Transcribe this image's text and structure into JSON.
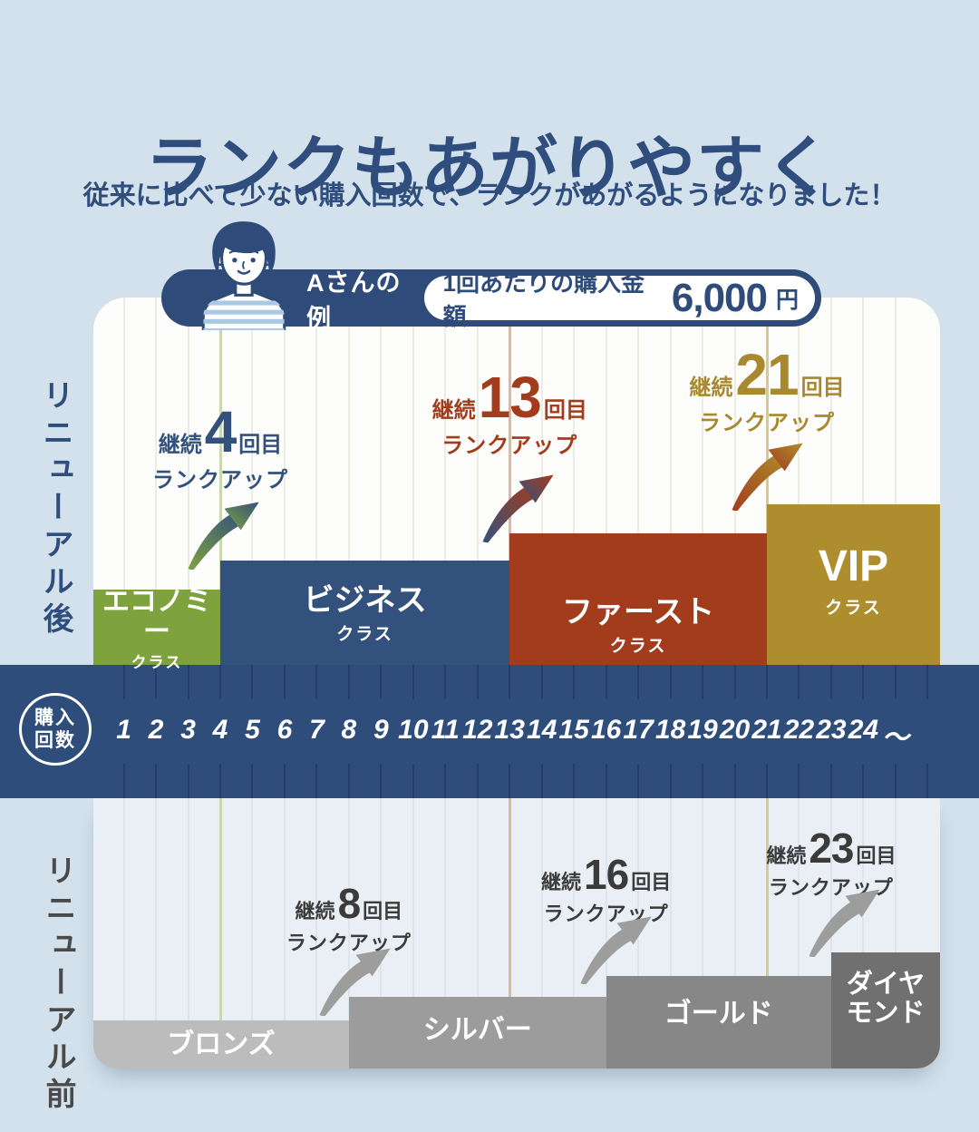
{
  "header": {
    "title": "ランクもあがりやすく",
    "subtitle": "従来に比べて少ない購入回数で、ランクがあがるようになりました！"
  },
  "example": {
    "label": "Aさんの例",
    "purchase_label": "1回あたりの購入金額",
    "amount": "6,000",
    "unit": "円"
  },
  "axis": {
    "circle_line1": "購入",
    "circle_line2": "回数",
    "counts": [
      "1",
      "2",
      "3",
      "4",
      "5",
      "6",
      "7",
      "8",
      "9",
      "10",
      "11",
      "12",
      "13",
      "14",
      "15",
      "16",
      "17",
      "18",
      "19",
      "20",
      "21",
      "22",
      "23",
      "24",
      "～"
    ]
  },
  "after": {
    "side_label": "リニューアル後",
    "ranks": [
      {
        "name": "エコノミー",
        "suffix": "クラス",
        "color": "#7EA33E",
        "from_count": 1
      },
      {
        "name": "ビジネス",
        "suffix": "クラス",
        "color": "#33517D",
        "from_count": 4
      },
      {
        "name": "ファースト",
        "suffix": "クラス",
        "color": "#A23C1D",
        "from_count": 13
      },
      {
        "name": "VIP",
        "suffix": "クラス",
        "color": "#AD8D2D",
        "from_count": 21
      }
    ],
    "annotations": [
      {
        "prefix": "継続",
        "count": "4",
        "unit": "回目",
        "line2": "ランクアップ",
        "color": "#33517D",
        "at_count": 4
      },
      {
        "prefix": "継続",
        "count": "13",
        "unit": "回目",
        "line2": "ランクアップ",
        "color": "#A23C1D",
        "at_count": 13
      },
      {
        "prefix": "継続",
        "count": "21",
        "unit": "回目",
        "line2": "ランクアップ",
        "color": "#A8892F",
        "at_count": 21
      }
    ],
    "thresholds": [
      {
        "count": 4,
        "line_color": "#C9D8AE"
      },
      {
        "count": 13,
        "line_color": "#E2B79D"
      },
      {
        "count": 21,
        "line_color": "#D9C88F"
      }
    ]
  },
  "before": {
    "side_label": "リニューアル前",
    "ranks": [
      {
        "name": "ブロンズ",
        "color": "#BCBCBC",
        "from_count": 1
      },
      {
        "name": "シルバー",
        "color": "#9C9C9C",
        "from_count": 8
      },
      {
        "name": "ゴールド",
        "color": "#878787",
        "from_count": 16
      },
      {
        "name": "ダイヤ\nモンド",
        "color": "#707070",
        "from_count": 23
      }
    ],
    "annotations": [
      {
        "prefix": "継続",
        "count": "8",
        "unit": "回目",
        "line2": "ランクアップ",
        "color": "#3B3B3B",
        "at_count": 8
      },
      {
        "prefix": "継続",
        "count": "16",
        "unit": "回目",
        "line2": "ランクアップ",
        "color": "#3B3B3B",
        "at_count": 16
      },
      {
        "prefix": "継続",
        "count": "23",
        "unit": "回目",
        "line2": "ランクアップ",
        "color": "#3B3B3B",
        "at_count": 23
      }
    ]
  },
  "colors": {
    "background": "#D3E1EC",
    "band": "#2F4D7B",
    "pill": "#2E4B7A",
    "panel_top": "#FDFDFB",
    "panel_bottom": "#E9EFF4",
    "title": "#2F4E7D",
    "grid_top": "#ECEBE4",
    "grid_bottom": "#DDE4EC",
    "tick": "#24406A",
    "arrow_gray": "#9D9D9D"
  },
  "chart_data": {
    "type": "area",
    "subtype": "step_rank_progression_comparison",
    "title": "ランクもあがりやすく",
    "x_axis": {
      "label": "購入回数",
      "ticks": [
        "1",
        "2",
        "3",
        "4",
        "5",
        "6",
        "7",
        "8",
        "9",
        "10",
        "11",
        "12",
        "13",
        "14",
        "15",
        "16",
        "17",
        "18",
        "19",
        "20",
        "21",
        "22",
        "23",
        "24",
        "～"
      ]
    },
    "series": [
      {
        "name": "リニューアル後",
        "position": "top",
        "steps": [
          {
            "rank": "エコノミークラス",
            "from_purchase": 1,
            "to_purchase": 3,
            "level": 1,
            "color": "#7EA33E"
          },
          {
            "rank": "ビジネスクラス",
            "from_purchase": 4,
            "to_purchase": 12,
            "level": 2,
            "color": "#33517D"
          },
          {
            "rank": "ファーストクラス",
            "from_purchase": 13,
            "to_purchase": 20,
            "level": 3,
            "color": "#A23C1D"
          },
          {
            "rank": "VIPクラス",
            "from_purchase": 21,
            "to_purchase": null,
            "level": 4,
            "color": "#AD8D2D"
          }
        ],
        "rank_up_annotations": [
          {
            "text": "継続4回目ランクアップ",
            "purchase": 4
          },
          {
            "text": "継続13回目ランクアップ",
            "purchase": 13
          },
          {
            "text": "継続21回目ランクアップ",
            "purchase": 21
          }
        ]
      },
      {
        "name": "リニューアル前",
        "position": "bottom",
        "steps": [
          {
            "rank": "ブロンズ",
            "from_purchase": 1,
            "to_purchase": 7,
            "level": 1,
            "color": "#BCBCBC"
          },
          {
            "rank": "シルバー",
            "from_purchase": 8,
            "to_purchase": 15,
            "level": 2,
            "color": "#9C9C9C"
          },
          {
            "rank": "ゴールド",
            "from_purchase": 16,
            "to_purchase": 22,
            "level": 3,
            "color": "#878787"
          },
          {
            "rank": "ダイヤモンド",
            "from_purchase": 23,
            "to_purchase": null,
            "level": 4,
            "color": "#707070"
          }
        ],
        "rank_up_annotations": [
          {
            "text": "継続8回目ランクアップ",
            "purchase": 8
          },
          {
            "text": "継続16回目ランクアップ",
            "purchase": 16
          },
          {
            "text": "継続23回目ランクアップ",
            "purchase": 23
          }
        ]
      }
    ],
    "example": {
      "person": "Aさん",
      "per_purchase_amount_yen": 6000
    }
  }
}
